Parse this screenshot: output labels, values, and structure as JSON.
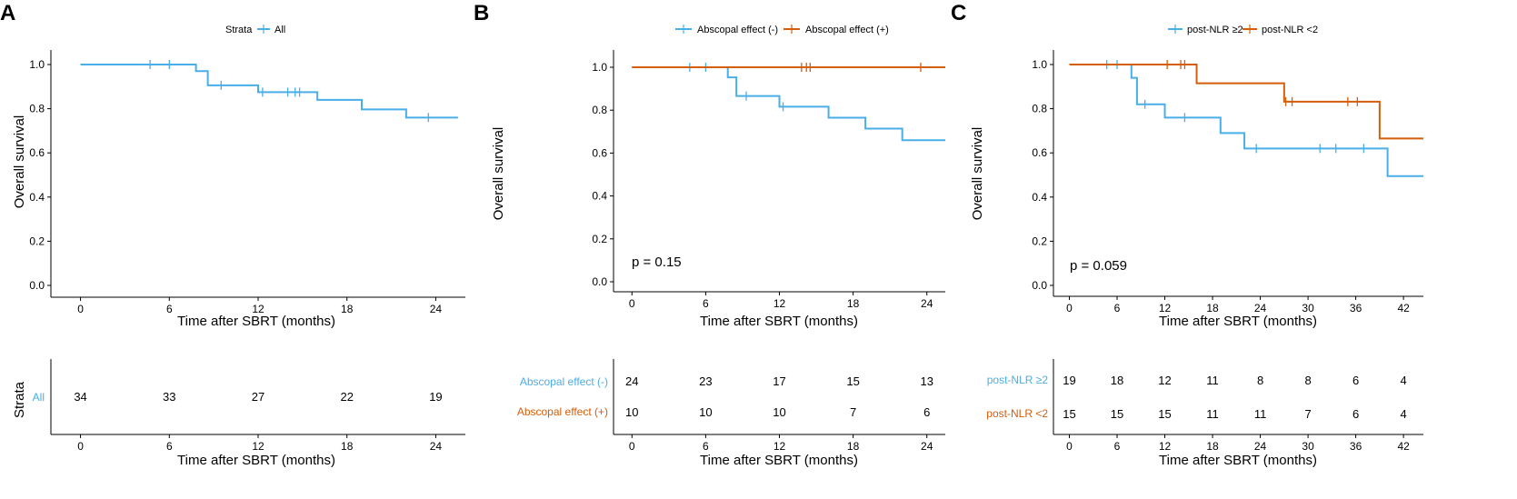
{
  "colors": {
    "blue": "#4aaee8",
    "orange": "#d55e0b"
  },
  "chart_data": [
    {
      "type": "line",
      "panel": "A",
      "ylabel": "Overall survival",
      "xlabel": "Time after SBRT (months)",
      "xlim": [
        -2,
        26
      ],
      "ylim": [
        0,
        1
      ],
      "xticks": [
        "0",
        "6",
        "12",
        "18",
        "24"
      ],
      "xtick_values": [
        0,
        6,
        12,
        18,
        24
      ],
      "yticks": [
        "0.0",
        "0.2",
        "0.4",
        "0.6",
        "0.8",
        "1.0"
      ],
      "yticks_values": [
        0,
        0.2,
        0.4,
        0.6,
        0.8,
        1.0
      ],
      "legend_title": "Strata",
      "series": [
        {
          "name": "All",
          "color": "#4aaee8",
          "steps": [
            [
              0,
              1.0
            ],
            [
              7.8,
              0.97
            ],
            [
              8.6,
              0.906
            ],
            [
              12,
              0.875
            ],
            [
              16,
              0.84
            ],
            [
              19,
              0.797
            ],
            [
              22,
              0.76
            ],
            [
              25.5,
              0.76
            ]
          ],
          "censors": [
            [
              4.7,
              1.0
            ],
            [
              6,
              1.0
            ],
            [
              9.5,
              0.906
            ],
            [
              12.3,
              0.875
            ],
            [
              14,
              0.875
            ],
            [
              14.5,
              0.875
            ],
            [
              14.8,
              0.875
            ],
            [
              23.5,
              0.76
            ]
          ]
        }
      ],
      "risk_table": {
        "ylabel": "Strata",
        "xlabel": "Time after SBRT (months)",
        "rows": [
          {
            "label": "All",
            "color": "#4aaee8",
            "values": [
              "34",
              "33",
              "27",
              "22",
              "19"
            ]
          }
        ]
      }
    },
    {
      "type": "line",
      "panel": "B",
      "ylabel": "Overall survival",
      "xlabel": "Time after SBRT (months)",
      "xlim": [
        -1.5,
        25.5
      ],
      "ylim": [
        0,
        1
      ],
      "xticks": [
        "0",
        "6",
        "12",
        "18",
        "24"
      ],
      "xtick_values": [
        0,
        6,
        12,
        18,
        24
      ],
      "yticks": [
        "0.0",
        "0.2",
        "0.4",
        "0.6",
        "0.8",
        "1.0"
      ],
      "yticks_values": [
        0,
        0.2,
        0.4,
        0.6,
        0.8,
        1.0
      ],
      "annotation": "p = 0.15",
      "series": [
        {
          "name": "Abscopal effect (-)",
          "color": "#4aaee8",
          "steps": [
            [
              0,
              1.0
            ],
            [
              7.8,
              0.953
            ],
            [
              8.5,
              0.866
            ],
            [
              12,
              0.816
            ],
            [
              16,
              0.765
            ],
            [
              19,
              0.714
            ],
            [
              22,
              0.66
            ],
            [
              25.5,
              0.66
            ]
          ],
          "censors": [
            [
              4.7,
              1.0
            ],
            [
              6,
              1.0
            ],
            [
              9.3,
              0.866
            ],
            [
              12.3,
              0.816
            ]
          ]
        },
        {
          "name": "Abscopal effect (+)",
          "color": "#d55e0b",
          "steps": [
            [
              0,
              1.0
            ],
            [
              25.5,
              1.0
            ]
          ],
          "censors": [
            [
              13.8,
              1.0
            ],
            [
              14.2,
              1.0
            ],
            [
              14.5,
              1.0
            ],
            [
              23.5,
              1.0
            ]
          ]
        }
      ],
      "risk_table": {
        "xlabel": "Time after SBRT (months)",
        "rows": [
          {
            "label": "Abscopal effect (-)",
            "color": "#4aaee8",
            "values": [
              "24",
              "23",
              "17",
              "15",
              "13"
            ]
          },
          {
            "label": "Abscopal effect (+)",
            "color": "#d55e0b",
            "values": [
              "10",
              "10",
              "10",
              "7",
              "6"
            ]
          }
        ]
      }
    },
    {
      "type": "line",
      "panel": "C",
      "ylabel": "Overall survival",
      "xlabel": "Time after SBRT (months)",
      "xlim": [
        -2,
        44.5
      ],
      "ylim": [
        0,
        1
      ],
      "xticks": [
        "0",
        "6",
        "12",
        "18",
        "24",
        "30",
        "36",
        "42"
      ],
      "xtick_values": [
        0,
        6,
        12,
        18,
        24,
        30,
        36,
        42
      ],
      "yticks": [
        "0.0",
        "0.2",
        "0.4",
        "0.6",
        "0.8",
        "1.0"
      ],
      "yticks_values": [
        0,
        0.2,
        0.4,
        0.6,
        0.8,
        1.0
      ],
      "annotation": "p = 0.059",
      "series": [
        {
          "name": "post-NLR ≥2",
          "color": "#4aaee8",
          "steps": [
            [
              0,
              1.0
            ],
            [
              7.8,
              0.94
            ],
            [
              8.5,
              0.82
            ],
            [
              12,
              0.76
            ],
            [
              19,
              0.69
            ],
            [
              22,
              0.62
            ],
            [
              40,
              0.495
            ],
            [
              44.5,
              0.495
            ]
          ],
          "censors": [
            [
              4.7,
              1.0
            ],
            [
              6,
              1.0
            ],
            [
              9.5,
              0.82
            ],
            [
              14.5,
              0.76
            ],
            [
              23.5,
              0.62
            ],
            [
              31.5,
              0.62
            ],
            [
              33.5,
              0.62
            ],
            [
              37,
              0.62
            ]
          ]
        },
        {
          "name": "post-NLR <2",
          "color": "#d55e0b",
          "steps": [
            [
              0,
              1.0
            ],
            [
              16,
              0.915
            ],
            [
              27,
              0.832
            ],
            [
              39,
              0.665
            ],
            [
              44.5,
              0.665
            ]
          ],
          "censors": [
            [
              12.3,
              1.0
            ],
            [
              14,
              1.0
            ],
            [
              14.5,
              1.0
            ],
            [
              27.2,
              0.832
            ],
            [
              28,
              0.832
            ],
            [
              35,
              0.832
            ],
            [
              36.2,
              0.832
            ]
          ]
        }
      ],
      "risk_table": {
        "xlabel": "Time after SBRT (months)",
        "rows": [
          {
            "label": "post-NLR ≥2",
            "color": "#4aaee8",
            "values": [
              "19",
              "18",
              "12",
              "11",
              "8",
              "8",
              "6",
              "4"
            ]
          },
          {
            "label": "post-NLR <2",
            "color": "#d55e0b",
            "values": [
              "15",
              "15",
              "15",
              "11",
              "11",
              "7",
              "6",
              "4"
            ]
          }
        ]
      }
    }
  ]
}
